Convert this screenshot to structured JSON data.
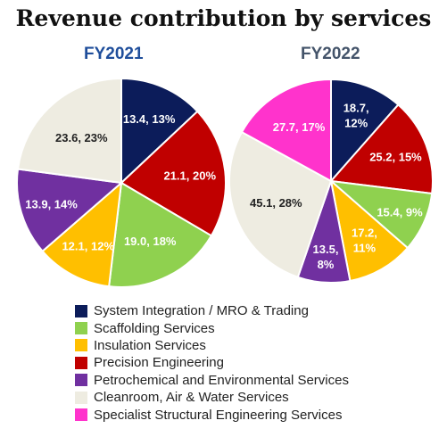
{
  "title": "Revenue contribution by services",
  "legend": [
    {
      "label": "System Integration / MRO & Trading",
      "color": "#0c1c5a"
    },
    {
      "label": "Scaffolding Services",
      "color": "#8fd14f"
    },
    {
      "label": "Insulation Services",
      "color": "#ffbf00"
    },
    {
      "label": "Precision Engineering",
      "color": "#c00000"
    },
    {
      "label": "Petrochemical and Environmental Services",
      "color": "#7030a0"
    },
    {
      "label": "Cleanroom, Air & Water Services",
      "color": "#eeece1"
    },
    {
      "label": "Specialist Structural Engineering Services",
      "color": "#ff33cc"
    }
  ],
  "chart_data": [
    {
      "type": "pie",
      "title": "FY2021",
      "title_color": "#1f4e9b",
      "slices": [
        {
          "category": "System Integration / MRO & Trading",
          "value": 13.4,
          "percent": 13,
          "label": "13.4, 13%"
        },
        {
          "category": "Precision Engineering",
          "value": 21.1,
          "percent": 20,
          "label": "21.1, 20%"
        },
        {
          "category": "Scaffolding Services",
          "value": 19.0,
          "percent": 18,
          "label": "19.0, 18%"
        },
        {
          "category": "Insulation Services",
          "value": 12.1,
          "percent": 12,
          "label": "12.1, 12%"
        },
        {
          "category": "Petrochemical and Environmental Services",
          "value": 13.9,
          "percent": 14,
          "label": "13.9, 14%"
        },
        {
          "category": "Cleanroom, Air & Water Services",
          "value": 23.6,
          "percent": 23,
          "label": "23.6, 23%"
        }
      ]
    },
    {
      "type": "pie",
      "title": "FY2022",
      "title_color": "#44546a",
      "slices": [
        {
          "category": "System Integration / MRO & Trading",
          "value": 18.7,
          "percent": 12,
          "label": "18.7, 12%"
        },
        {
          "category": "Precision Engineering",
          "value": 25.2,
          "percent": 15,
          "label": "25.2, 15%"
        },
        {
          "category": "Scaffolding Services",
          "value": 15.4,
          "percent": 9,
          "label": "15.4, 9%"
        },
        {
          "category": "Insulation Services",
          "value": 17.2,
          "percent": 11,
          "label": "17.2, 11%"
        },
        {
          "category": "Petrochemical and Environmental Services",
          "value": 13.5,
          "percent": 8,
          "label": "13.5, 8%"
        },
        {
          "category": "Cleanroom, Air & Water Services",
          "value": 45.1,
          "percent": 28,
          "label": "45.1, 28%"
        },
        {
          "category": "Specialist Structural Engineering Services",
          "value": 27.7,
          "percent": 17,
          "label": "27.7, 17%"
        }
      ]
    }
  ]
}
